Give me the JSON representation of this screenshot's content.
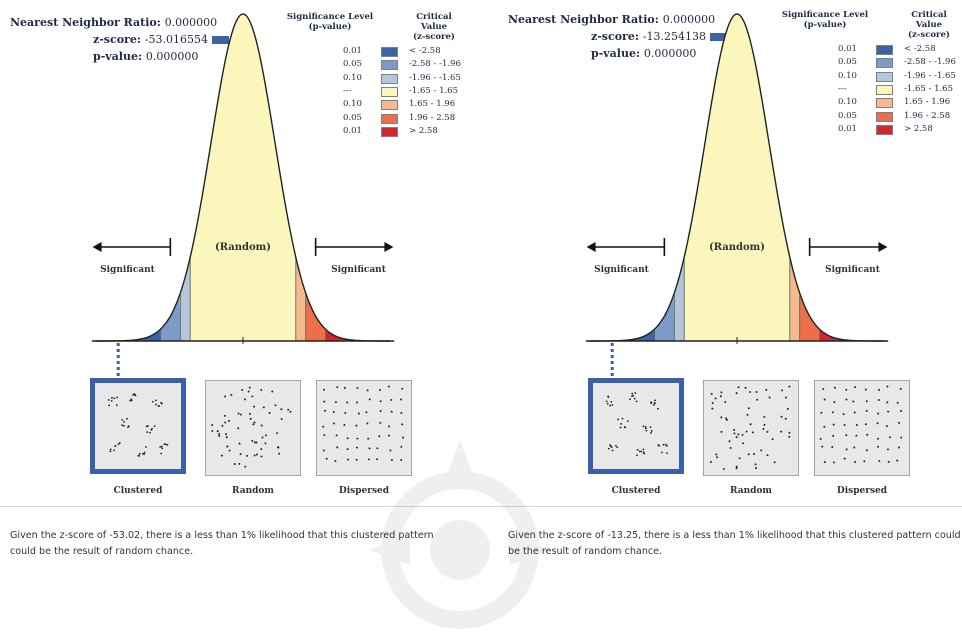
{
  "panels": [
    {
      "stats": {
        "nn_ratio_label": "Nearest Neighbor Ratio:",
        "nn_ratio_value": "0.000000",
        "z_label": "z-score:",
        "z_value": "-53.016554",
        "p_label": "p-value:",
        "p_value": "0.000000"
      },
      "legend": {
        "sig_header_1": "Significance Level",
        "sig_header_2": "(p-value)",
        "crit_header_1": "Critical Value",
        "crit_header_2": "(z-score)",
        "rows": [
          {
            "p": "0.01",
            "z": "< -2.58",
            "color": "#3d62a6"
          },
          {
            "p": "0.05",
            "z": "-2.58 - -1.96",
            "color": "#7d9bc7"
          },
          {
            "p": "0.10",
            "z": "-1.96 - -1.65",
            "color": "#b6c6d9"
          },
          {
            "p": "---",
            "z": "-1.65 - 1.65",
            "color": "#fbf7bc"
          },
          {
            "p": "0.10",
            "z": "1.65 - 1.96",
            "color": "#f7b98c"
          },
          {
            "p": "0.05",
            "z": "1.96 - 2.58",
            "color": "#ec6f49"
          },
          {
            "p": "0.01",
            "z": "> 2.58",
            "color": "#d1262a"
          }
        ]
      },
      "curve": {
        "random_label": "(Random)",
        "left_label": "Significant",
        "right_label": "Significant"
      },
      "patterns": [
        {
          "label": "Clustered",
          "selected": true
        },
        {
          "label": "Random",
          "selected": false
        },
        {
          "label": "Dispersed",
          "selected": false
        }
      ],
      "caption": "Given the z-score of -53.02, there is a less than 1% likelihood that this clustered pattern could be the result of random chance."
    },
    {
      "stats": {
        "nn_ratio_label": "Nearest Neighbor Ratio:",
        "nn_ratio_value": "0.000000",
        "z_label": "z-score:",
        "z_value": "-13.254138",
        "p_label": "p-value:",
        "p_value": "0.000000"
      },
      "legend": {
        "sig_header_1": "Significance Level",
        "sig_header_2": "(p-value)",
        "crit_header_1": "Critical Value",
        "crit_header_2": "(z-score)",
        "rows": [
          {
            "p": "0.01",
            "z": "< -2.58",
            "color": "#3d62a6"
          },
          {
            "p": "0.05",
            "z": "-2.58 - -1.96",
            "color": "#7d9bc7"
          },
          {
            "p": "0.10",
            "z": "-1.96 - -1.65",
            "color": "#b6c6d9"
          },
          {
            "p": "---",
            "z": "-1.65 - 1.65",
            "color": "#fbf7bc"
          },
          {
            "p": "0.10",
            "z": "1.65 - 1.96",
            "color": "#f7b98c"
          },
          {
            "p": "0.05",
            "z": "1.96 - 2.58",
            "color": "#ec6f49"
          },
          {
            "p": "0.01",
            "z": "> 2.58",
            "color": "#d1262a"
          }
        ]
      },
      "curve": {
        "random_label": "(Random)",
        "left_label": "Significant",
        "right_label": "Significant"
      },
      "patterns": [
        {
          "label": "Clustered",
          "selected": true
        },
        {
          "label": "Random",
          "selected": false
        },
        {
          "label": "Dispersed",
          "selected": false
        }
      ],
      "caption": "Given the z-score of -13.25, there is a less than 1% likelihood that this clustered pattern could be the result of random chance."
    }
  ]
}
